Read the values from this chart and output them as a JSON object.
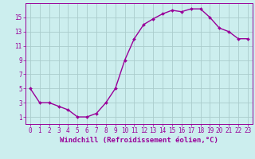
{
  "x": [
    0,
    1,
    2,
    3,
    4,
    5,
    6,
    7,
    8,
    9,
    10,
    11,
    12,
    13,
    14,
    15,
    16,
    17,
    18,
    19,
    20,
    21,
    22,
    23
  ],
  "y": [
    5,
    3,
    3,
    2.5,
    2,
    1,
    1,
    1.5,
    3,
    5,
    9,
    12,
    14,
    14.8,
    15.5,
    16,
    15.8,
    16.2,
    16.2,
    15,
    13.5,
    13,
    12,
    12
  ],
  "line_color": "#990099",
  "marker": "D",
  "marker_size": 2,
  "bg_color": "#cceeee",
  "grid_color": "#aacccc",
  "xlabel": "Windchill (Refroidissement éolien,°C)",
  "xlim": [
    -0.5,
    23.5
  ],
  "ylim": [
    0,
    17
  ],
  "yticks": [
    1,
    3,
    5,
    7,
    9,
    11,
    13,
    15
  ],
  "xticks": [
    0,
    1,
    2,
    3,
    4,
    5,
    6,
    7,
    8,
    9,
    10,
    11,
    12,
    13,
    14,
    15,
    16,
    17,
    18,
    19,
    20,
    21,
    22,
    23
  ],
  "tick_fontsize": 5.5,
  "xlabel_fontsize": 6.5,
  "line_width": 1.0
}
